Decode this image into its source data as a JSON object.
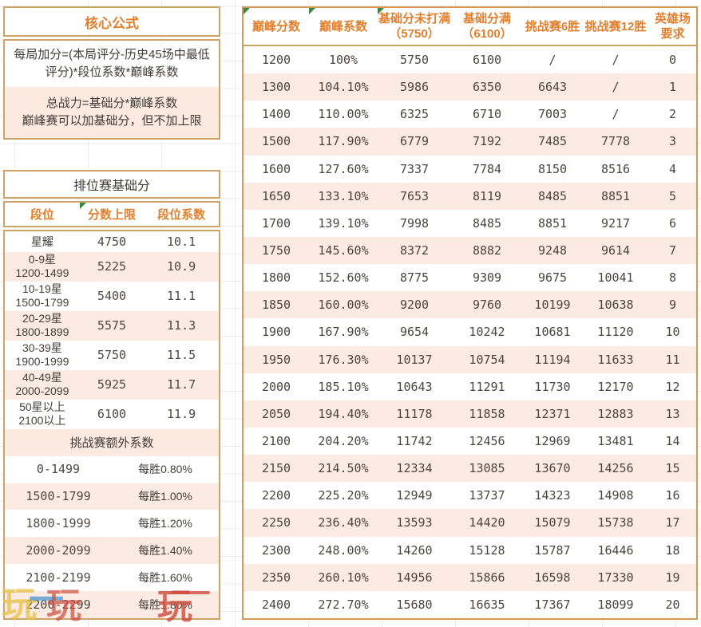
{
  "colors": {
    "accent_orange": "#e0802f",
    "row_pink": "#fcebe2",
    "border_tan": "#cda467",
    "table_border": "#d49a55",
    "corner_flag_green": "#3a8a3c",
    "text_dark": "#44403c",
    "watermark_yellow": "#e8c34b",
    "watermark_blue": "#5f9fd6",
    "watermark_red": "#cc4b3e"
  },
  "left_panel": {
    "core_title": "核心公式",
    "formula_add_line1": "每局加分=(本局评分-历史45场中最低",
    "formula_add_line2": "评分)*段位系数*巅峰系数",
    "formula_power_line1": "总战力=基础分*巅峰系数",
    "formula_power_line2": "巅峰赛可以加基础分，但不加上限",
    "rank_section_title": "排位赛基础分",
    "rank_headers": [
      "段位",
      "分数上限",
      "段位系数"
    ],
    "rank_rows": [
      {
        "rank": "星耀",
        "range": "",
        "score_cap": "4750",
        "coefficient": "10.1"
      },
      {
        "rank": "0-9星",
        "range": "1200-1499",
        "score_cap": "5225",
        "coefficient": "10.9"
      },
      {
        "rank": "10-19星",
        "range": "1500-1799",
        "score_cap": "5400",
        "coefficient": "11.1"
      },
      {
        "rank": "20-29星",
        "range": "1800-1899",
        "score_cap": "5575",
        "coefficient": "11.3"
      },
      {
        "rank": "30-39星",
        "range": "1900-1999",
        "score_cap": "5750",
        "coefficient": "11.5"
      },
      {
        "rank": "40-49星",
        "range": "2000-2099",
        "score_cap": "5925",
        "coefficient": "11.7"
      },
      {
        "rank": "50星以上",
        "range": "2100以上",
        "score_cap": "6100",
        "coefficient": "11.9"
      }
    ],
    "challenge_section_title": "挑战赛额外系数",
    "challenge_rows": [
      {
        "range": "0-1499",
        "bonus": "每胜0.80%"
      },
      {
        "range": "1500-1799",
        "bonus": "每胜1.00%"
      },
      {
        "range": "1800-1999",
        "bonus": "每胜1.20%"
      },
      {
        "range": "2000-2099",
        "bonus": "每胜1.40%"
      },
      {
        "range": "2100-2199",
        "bonus": "每胜1.60%"
      },
      {
        "range": "2200-2299",
        "bonus": "每胜1.80%"
      }
    ]
  },
  "score_table": {
    "headers": [
      "巅峰分数",
      "巅峰系数",
      "基础分未打满（5750）",
      "基础分满（6100）",
      "挑战赛6胜",
      "挑战赛12胜",
      "英雄场要求"
    ],
    "flagged_header_indexes": [
      0,
      1,
      2
    ],
    "rows": [
      [
        "1200",
        "100%",
        "5750",
        "6100",
        "/",
        "/",
        "0"
      ],
      [
        "1300",
        "104.10%",
        "5986",
        "6350",
        "6643",
        "/",
        "1"
      ],
      [
        "1400",
        "110.00%",
        "6325",
        "6710",
        "7003",
        "/",
        "2"
      ],
      [
        "1500",
        "117.90%",
        "6779",
        "7192",
        "7485",
        "7778",
        "3"
      ],
      [
        "1600",
        "127.60%",
        "7337",
        "7784",
        "8150",
        "8516",
        "4"
      ],
      [
        "1650",
        "133.10%",
        "7653",
        "8119",
        "8485",
        "8851",
        "5"
      ],
      [
        "1700",
        "139.10%",
        "7998",
        "8485",
        "8851",
        "9217",
        "6"
      ],
      [
        "1750",
        "145.60%",
        "8372",
        "8882",
        "9248",
        "9614",
        "7"
      ],
      [
        "1800",
        "152.60%",
        "8775",
        "9309",
        "9675",
        "10041",
        "8"
      ],
      [
        "1850",
        "160.00%",
        "9200",
        "9760",
        "10199",
        "10638",
        "9"
      ],
      [
        "1900",
        "167.90%",
        "9654",
        "10242",
        "10681",
        "11120",
        "10"
      ],
      [
        "1950",
        "176.30%",
        "10137",
        "10754",
        "11194",
        "11633",
        "11"
      ],
      [
        "2000",
        "185.10%",
        "10643",
        "11291",
        "11730",
        "12170",
        "12"
      ],
      [
        "2050",
        "194.40%",
        "11178",
        "11858",
        "12371",
        "12883",
        "13"
      ],
      [
        "2100",
        "204.20%",
        "11742",
        "12456",
        "12969",
        "13481",
        "14"
      ],
      [
        "2150",
        "214.50%",
        "12334",
        "13085",
        "13670",
        "14256",
        "15"
      ],
      [
        "2200",
        "225.20%",
        "12949",
        "13737",
        "14323",
        "14908",
        "16"
      ],
      [
        "2250",
        "236.40%",
        "13593",
        "14420",
        "15079",
        "15738",
        "17"
      ],
      [
        "2300",
        "248.00%",
        "14260",
        "15128",
        "15787",
        "16446",
        "18"
      ],
      [
        "2350",
        "260.10%",
        "14956",
        "15866",
        "16598",
        "17330",
        "19"
      ],
      [
        "2400",
        "272.70%",
        "15680",
        "16635",
        "17367",
        "18099",
        "20"
      ]
    ]
  },
  "watermark": {
    "char_yellow": "玩",
    "char_blue": "一",
    "char_red1": "玩",
    "char_red2": "玩"
  }
}
